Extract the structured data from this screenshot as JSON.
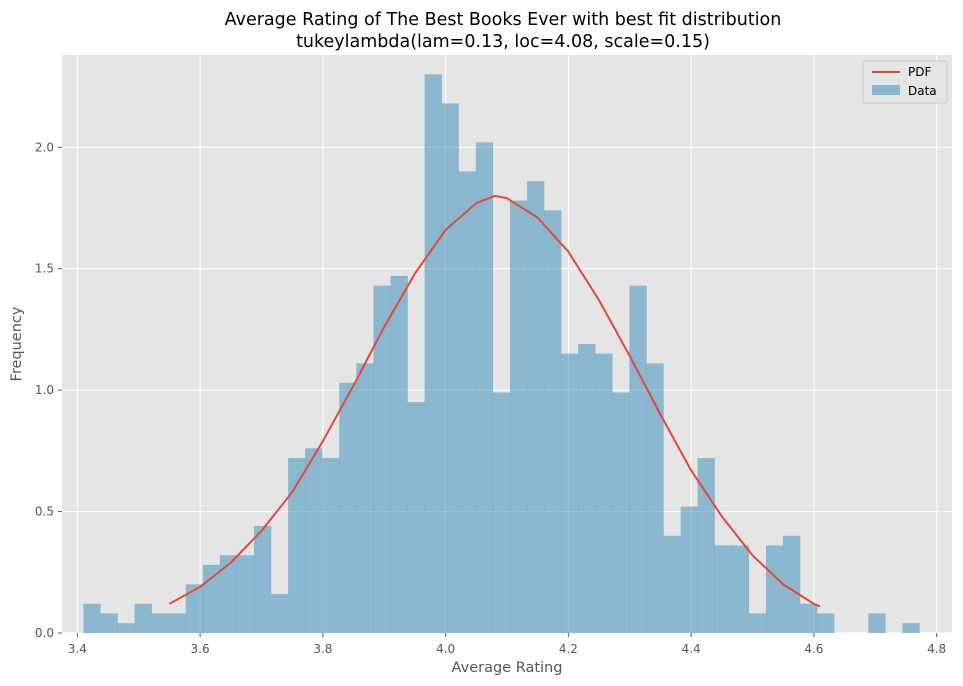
{
  "chart_data": {
    "type": "bar",
    "title": "Average Rating of The Best Books Ever with best fit distribution",
    "subtitle": "tukeylambda(lam=0.13, loc=4.08, scale=0.15)",
    "xlabel": "Average Rating",
    "ylabel": "Frequency",
    "xlim": [
      3.375,
      4.825
    ],
    "ylim": [
      0,
      2.38
    ],
    "xticks": [
      3.4,
      3.6,
      3.8,
      4.0,
      4.2,
      4.4,
      4.6,
      4.8
    ],
    "xtick_labels": [
      "3.4",
      "3.6",
      "3.8",
      "4.0",
      "4.2",
      "4.4",
      "4.6",
      "4.8"
    ],
    "yticks": [
      0.0,
      0.5,
      1.0,
      1.5,
      2.0
    ],
    "ytick_labels": [
      "0.0",
      "0.5",
      "1.0",
      "1.5",
      "2.0"
    ],
    "grid": true,
    "legend_position": "top-right",
    "colors": {
      "bars": "#348abd",
      "pdf": "#e24a33",
      "background": "#e5e5e5",
      "grid": "#ffffff"
    },
    "histogram": {
      "name": "Data",
      "bin_start": 3.41,
      "bin_width": 0.0278,
      "values": [
        0.12,
        0.08,
        0.04,
        0.12,
        0.08,
        0.08,
        0.2,
        0.28,
        0.32,
        0.32,
        0.44,
        0.16,
        0.72,
        0.76,
        0.72,
        1.03,
        1.11,
        1.43,
        1.47,
        0.95,
        2.3,
        2.18,
        1.9,
        2.02,
        0.99,
        1.78,
        1.86,
        1.74,
        1.15,
        1.19,
        1.15,
        0.99,
        1.43,
        1.11,
        0.4,
        0.52,
        0.72,
        0.36,
        0.36,
        0.08,
        0.36,
        0.4,
        0.12,
        0.08,
        0,
        0,
        0.08,
        0,
        0.04
      ]
    },
    "pdf": {
      "name": "PDF",
      "x": [
        3.55,
        3.6,
        3.65,
        3.7,
        3.75,
        3.8,
        3.85,
        3.9,
        3.95,
        4.0,
        4.05,
        4.08,
        4.1,
        4.15,
        4.2,
        4.25,
        4.3,
        4.35,
        4.4,
        4.45,
        4.5,
        4.55,
        4.6,
        4.61
      ],
      "y": [
        0.12,
        0.19,
        0.29,
        0.42,
        0.58,
        0.79,
        1.02,
        1.26,
        1.48,
        1.66,
        1.77,
        1.8,
        1.79,
        1.71,
        1.57,
        1.37,
        1.14,
        0.9,
        0.67,
        0.48,
        0.32,
        0.2,
        0.12,
        0.11
      ]
    }
  }
}
